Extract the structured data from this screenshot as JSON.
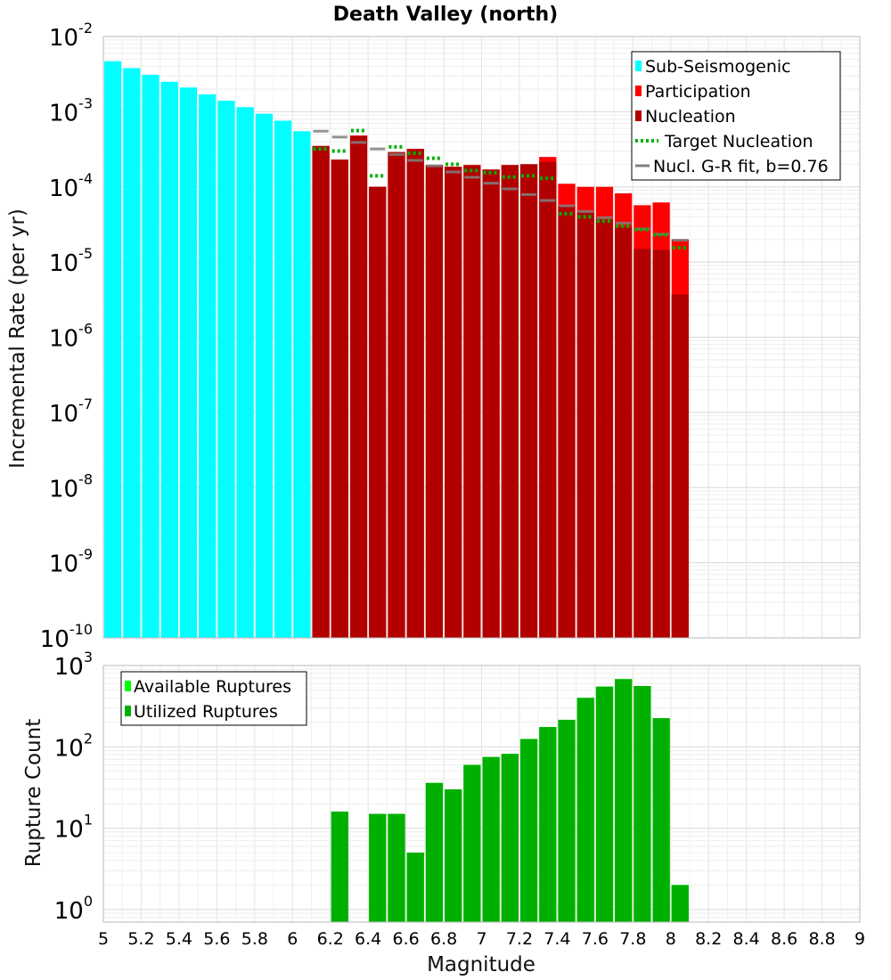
{
  "chart_data": [
    {
      "type": "bar",
      "title": "Death Valley (north)",
      "xlabel": "Magnitude",
      "ylabel": "Incremental Rate (per yr)",
      "yscale": "log",
      "xlim": [
        5,
        9
      ],
      "ylim": [
        1e-10,
        0.01
      ],
      "bin_width": 0.1,
      "y_tick_labels": [
        {
          "base": "10",
          "exp": "-10"
        },
        {
          "base": "10",
          "exp": "-9"
        },
        {
          "base": "10",
          "exp": "-8"
        },
        {
          "base": "10",
          "exp": "-7"
        },
        {
          "base": "10",
          "exp": "-6"
        },
        {
          "base": "10",
          "exp": "-5"
        },
        {
          "base": "10",
          "exp": "-4"
        },
        {
          "base": "10",
          "exp": "-3"
        },
        {
          "base": "10",
          "exp": "-2"
        }
      ],
      "legend": [
        {
          "label": "Sub-Seismogenic",
          "color": "#00ffff",
          "style": "box"
        },
        {
          "label": "Participation",
          "color": "#ff0000",
          "style": "box"
        },
        {
          "label": "Nucleation",
          "color": "#b20000",
          "style": "box"
        },
        {
          "label": "Target Nucleation",
          "color": "#00b000",
          "style": "dotted"
        },
        {
          "label": "Nucl. G-R fit, b=0.76",
          "color": "#808080",
          "style": "line"
        }
      ],
      "legend_position": "top-right",
      "series": [
        {
          "name": "Sub-Seismogenic",
          "color": "#00ffff",
          "x": [
            5.05,
            5.15,
            5.25,
            5.35,
            5.45,
            5.55,
            5.65,
            5.75,
            5.85,
            5.95,
            6.05
          ],
          "values": [
            0.0047,
            0.0038,
            0.0031,
            0.0025,
            0.0021,
            0.0017,
            0.0014,
            0.00115,
            0.00094,
            0.00076,
            0.00055
          ]
        },
        {
          "name": "Participation",
          "color": "#ff0000",
          "x": [
            6.15,
            6.25,
            6.35,
            6.45,
            6.55,
            6.65,
            6.75,
            6.85,
            6.95,
            7.05,
            7.15,
            7.25,
            7.35,
            7.45,
            7.55,
            7.65,
            7.75,
            7.85,
            7.95,
            8.05
          ],
          "values": [
            0.00035,
            0.00023,
            0.00048,
            0.0001,
            0.00029,
            0.00032,
            0.000195,
            0.000185,
            0.000195,
            0.00017,
            0.000195,
            0.0002,
            0.00025,
            0.00011,
            0.0001,
            0.0001,
            8.2e-05,
            5.7e-05,
            6.2e-05,
            2e-05
          ]
        },
        {
          "name": "Nucleation",
          "color": "#b20000",
          "x": [
            6.15,
            6.25,
            6.35,
            6.45,
            6.55,
            6.65,
            6.75,
            6.85,
            6.95,
            7.05,
            7.15,
            7.25,
            7.35,
            7.45,
            7.55,
            7.65,
            7.75,
            7.85,
            7.95,
            8.05
          ],
          "values": [
            0.00035,
            0.00023,
            0.00048,
            0.0001,
            0.00029,
            0.00032,
            0.000195,
            0.000185,
            0.000195,
            0.00017,
            0.000195,
            0.0002,
            0.000215,
            5.5e-05,
            4.6e-05,
            3.7e-05,
            2.9e-05,
            1.5e-05,
            1.45e-05,
            3.7e-06
          ]
        },
        {
          "name": "Target Nucleation",
          "color": "#00b000",
          "x": [
            6.15,
            6.25,
            6.35,
            6.45,
            6.55,
            6.65,
            6.75,
            6.85,
            6.95,
            7.05,
            7.15,
            7.25,
            7.35,
            7.45,
            7.55,
            7.65,
            7.75,
            7.85,
            7.95,
            8.05
          ],
          "values": [
            0.00032,
            0.0003,
            0.00056,
            0.00014,
            0.00034,
            0.00028,
            0.00024,
            0.0002,
            0.000165,
            0.000155,
            0.000135,
            0.00014,
            0.00013,
            4.4e-05,
            4e-05,
            3.5e-05,
            3e-05,
            2.7e-05,
            2.3e-05,
            1.55e-05
          ]
        },
        {
          "name": "Nucl. G-R fit, b=0.76",
          "color": "#808080",
          "x": [
            6.15,
            6.25,
            6.35,
            6.45,
            6.55,
            6.65,
            6.75,
            6.85,
            6.95,
            7.05,
            7.15,
            7.25,
            7.35,
            7.45,
            7.55,
            7.65,
            7.75,
            7.85,
            7.95,
            8.05
          ],
          "values": [
            0.00055,
            0.00046,
            0.00039,
            0.00032,
            0.00027,
            0.000225,
            0.00019,
            0.000158,
            0.000134,
            0.000112,
            9.4e-05,
            7.9e-05,
            6.6e-05,
            5.6e-05,
            4.7e-05,
            3.9e-05,
            3.3e-05,
            2.75e-05,
            2.35e-05,
            1.95e-05
          ]
        }
      ]
    },
    {
      "type": "bar",
      "title": "",
      "xlabel": "Magnitude",
      "ylabel": "Rupture Count",
      "yscale": "log",
      "xlim": [
        5,
        9
      ],
      "ylim": [
        0.7,
        1000
      ],
      "bin_width": 0.1,
      "x_tick_labels": [
        "5",
        "5.2",
        "5.4",
        "5.6",
        "5.8",
        "6",
        "6.2",
        "6.4",
        "6.6",
        "6.8",
        "7",
        "7.2",
        "7.4",
        "7.6",
        "7.8",
        "8",
        "8.2",
        "8.4",
        "8.6",
        "8.8",
        "9"
      ],
      "y_tick_labels": [
        {
          "base": "10",
          "exp": "0"
        },
        {
          "base": "10",
          "exp": "1"
        },
        {
          "base": "10",
          "exp": "2"
        },
        {
          "base": "10",
          "exp": "3"
        }
      ],
      "legend": [
        {
          "label": "Available Ruptures",
          "color": "#00ff00",
          "style": "box"
        },
        {
          "label": "Utilized Ruptures",
          "color": "#00b000",
          "style": "box"
        }
      ],
      "legend_position": "top-left",
      "series": [
        {
          "name": "Available Ruptures",
          "color": "#00ff00",
          "x": [
            6.25,
            6.45,
            6.55,
            6.65,
            6.75,
            6.85,
            6.95,
            7.05,
            7.15,
            7.25,
            7.35,
            7.45,
            7.55,
            7.65,
            7.75,
            7.85,
            7.95,
            8.05
          ],
          "values": [
            16,
            15,
            15,
            5,
            36,
            30,
            60,
            75,
            82,
            125,
            175,
            215,
            400,
            550,
            680,
            560,
            225,
            2
          ]
        },
        {
          "name": "Utilized Ruptures",
          "color": "#00b000",
          "x": [
            6.25,
            6.45,
            6.55,
            6.65,
            6.75,
            6.85,
            6.95,
            7.05,
            7.15,
            7.25,
            7.35,
            7.45,
            7.55,
            7.65,
            7.75,
            7.85,
            7.95,
            8.05
          ],
          "values": [
            16,
            15,
            15,
            5,
            36,
            30,
            60,
            75,
            82,
            125,
            175,
            215,
            400,
            550,
            680,
            560,
            225,
            2
          ]
        }
      ]
    }
  ]
}
